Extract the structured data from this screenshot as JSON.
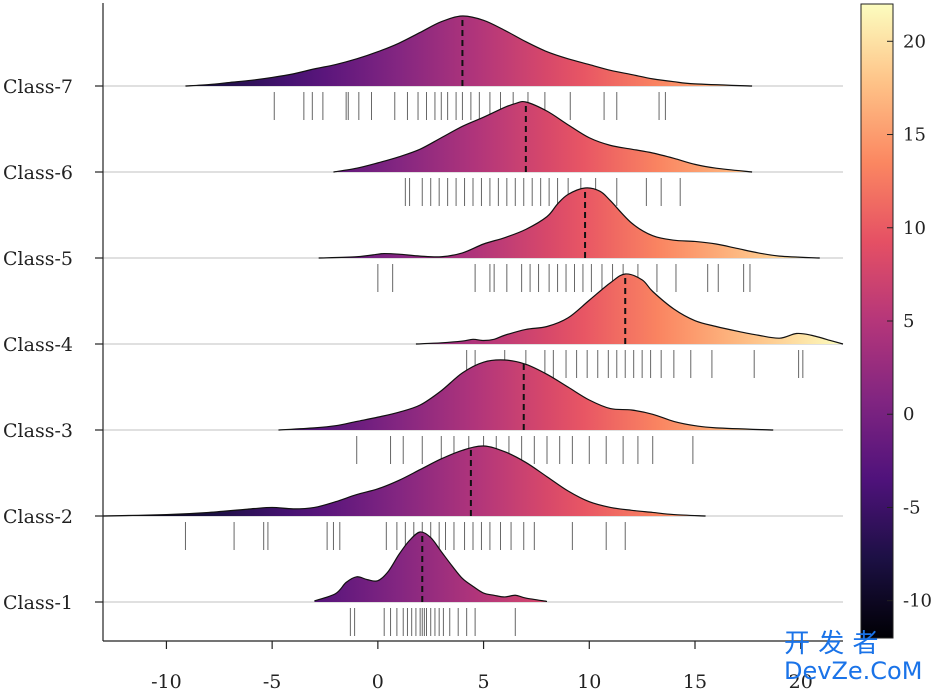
{
  "chart_data": {
    "type": "ridgeline",
    "title": "",
    "xlabel": "",
    "ylabel": "",
    "xlim": [
      -13,
      22
    ],
    "xticks": [
      -10,
      -5,
      0,
      5,
      10,
      15,
      20
    ],
    "xtick_labels": [
      "-10",
      "-5",
      "0",
      "5",
      "10",
      "15",
      "20"
    ],
    "colormap": "magma",
    "colorbar": {
      "range": [
        -12,
        22
      ],
      "ticks": [
        -10,
        -5,
        0,
        5,
        10,
        15,
        20
      ],
      "tick_labels": [
        "-10",
        "-5",
        "0",
        "5",
        "10",
        "15",
        "20"
      ],
      "stops": [
        "#000004",
        "#1c1044",
        "#4f127b",
        "#812581",
        "#b5367a",
        "#e55064",
        "#fb8761",
        "#fec287",
        "#fcfdbf"
      ]
    },
    "grid": "horizontal baselines only",
    "series": [
      {
        "name": "Class-1",
        "median": 2.1,
        "density_x": [
          -3,
          -2,
          -1.5,
          -1,
          -0.5,
          0,
          0.5,
          1,
          1.5,
          2,
          2.5,
          3,
          3.5,
          4,
          4.5,
          5,
          5.5,
          6,
          6.5,
          7,
          8
        ],
        "density_y": [
          0.02,
          0.15,
          0.35,
          0.45,
          0.4,
          0.38,
          0.55,
          0.85,
          1.1,
          1.25,
          1.15,
          0.9,
          0.65,
          0.42,
          0.28,
          0.16,
          0.12,
          0.09,
          0.12,
          0.07,
          0.01
        ],
        "samples": [
          -1.3,
          -1.1,
          0.3,
          0.6,
          0.9,
          1.2,
          1.4,
          1.6,
          1.8,
          2.0,
          2.1,
          2.2,
          2.3,
          2.5,
          2.7,
          2.9,
          3.1,
          3.4,
          3.8,
          4.2,
          4.6,
          6.5
        ]
      },
      {
        "name": "Class-2",
        "median": 4.4,
        "density_x": [
          -13,
          -10,
          -8,
          -6,
          -5,
          -4,
          -3,
          -2,
          -1,
          0,
          1,
          2,
          3,
          4,
          5,
          6,
          7,
          8,
          9,
          10,
          11,
          12,
          13,
          14,
          15.5
        ],
        "density_y": [
          0.0,
          0.02,
          0.05,
          0.1,
          0.12,
          0.1,
          0.12,
          0.2,
          0.3,
          0.38,
          0.5,
          0.65,
          0.8,
          0.92,
          0.98,
          0.9,
          0.75,
          0.55,
          0.35,
          0.2,
          0.12,
          0.08,
          0.05,
          0.02,
          0.0
        ],
        "samples": [
          -9.1,
          -6.8,
          -5.4,
          -5.2,
          -2.4,
          -2.1,
          -1.8,
          0.4,
          0.9,
          1.3,
          1.7,
          2.1,
          2.5,
          2.9,
          3.2,
          3.6,
          4.1,
          4.5,
          4.9,
          5.3,
          5.8,
          6.3,
          6.9,
          7.4,
          9.2,
          10.8,
          11.7
        ]
      },
      {
        "name": "Class-3",
        "median": 6.9,
        "density_x": [
          -4.7,
          -3,
          -2,
          -1,
          0,
          1,
          2,
          3,
          4,
          5,
          6,
          7,
          8,
          9,
          10,
          11,
          12,
          13,
          14,
          15,
          16,
          18.7
        ],
        "density_y": [
          0.0,
          0.03,
          0.06,
          0.12,
          0.18,
          0.25,
          0.35,
          0.55,
          0.8,
          0.95,
          0.98,
          0.92,
          0.78,
          0.6,
          0.42,
          0.3,
          0.28,
          0.22,
          0.12,
          0.06,
          0.03,
          0.0
        ],
        "samples": [
          -1.0,
          0.6,
          1.2,
          2.1,
          3.0,
          3.6,
          4.3,
          5.0,
          5.6,
          6.2,
          6.8,
          7.4,
          8.0,
          8.6,
          9.2,
          10.0,
          10.8,
          11.6,
          12.3,
          13.0,
          14.9
        ]
      },
      {
        "name": "Class-4",
        "median": 11.7,
        "density_x": [
          1.8,
          3,
          4,
          4.5,
          5,
          5.5,
          6,
          7,
          8,
          9,
          10,
          11,
          11.7,
          12.5,
          13,
          14,
          15,
          16,
          17,
          18,
          19,
          19.8,
          20.5,
          21.5,
          22
        ],
        "density_y": [
          0.0,
          0.02,
          0.05,
          0.08,
          0.06,
          0.08,
          0.15,
          0.25,
          0.3,
          0.45,
          0.75,
          1.05,
          1.2,
          1.1,
          0.9,
          0.6,
          0.4,
          0.3,
          0.22,
          0.15,
          0.1,
          0.18,
          0.15,
          0.05,
          0.0
        ],
        "samples": [
          4.2,
          4.6,
          6.0,
          7.0,
          7.9,
          8.3,
          8.9,
          9.4,
          9.9,
          10.4,
          10.9,
          11.3,
          11.7,
          12.1,
          12.5,
          12.9,
          13.4,
          14.0,
          14.8,
          15.8,
          17.8,
          19.9,
          20.1
        ]
      },
      {
        "name": "Class-5",
        "median": 9.8,
        "density_x": [
          -2.8,
          -1,
          0,
          0.3,
          1,
          2,
          3,
          4,
          5,
          6,
          7,
          8,
          8.5,
          9,
          9.8,
          10.5,
          11,
          12,
          13,
          14,
          15,
          16,
          17,
          18,
          19,
          20.9
        ],
        "density_y": [
          0.0,
          0.02,
          0.06,
          0.07,
          0.06,
          0.03,
          0.02,
          0.08,
          0.22,
          0.32,
          0.45,
          0.65,
          0.85,
          1.0,
          1.1,
          1.05,
          0.9,
          0.55,
          0.35,
          0.28,
          0.26,
          0.22,
          0.15,
          0.08,
          0.03,
          0.0
        ],
        "samples": [
          0.0,
          0.7,
          4.6,
          5.3,
          5.5,
          6.1,
          6.8,
          7.2,
          7.6,
          8.1,
          8.5,
          8.9,
          9.3,
          9.7,
          10.1,
          10.6,
          11.1,
          11.6,
          12.3,
          13.2,
          14.1,
          15.6,
          16.1,
          17.3,
          17.6
        ]
      },
      {
        "name": "Class-6",
        "median": 7.0,
        "density_x": [
          -2.1,
          -1,
          0,
          1,
          2,
          3,
          4,
          5,
          6,
          6.5,
          7,
          8,
          9,
          10,
          11,
          12,
          13,
          14,
          15,
          16,
          17.7
        ],
        "density_y": [
          0.0,
          0.05,
          0.12,
          0.2,
          0.3,
          0.45,
          0.6,
          0.72,
          0.85,
          0.9,
          0.92,
          0.8,
          0.62,
          0.45,
          0.35,
          0.3,
          0.25,
          0.18,
          0.1,
          0.05,
          0.0
        ],
        "samples": [
          1.3,
          1.5,
          2.1,
          2.5,
          2.9,
          3.3,
          3.7,
          4.1,
          4.5,
          4.9,
          5.3,
          5.7,
          6.1,
          6.5,
          6.9,
          7.3,
          7.7,
          8.1,
          8.5,
          9.0,
          9.6,
          10.3,
          11.3,
          12.7,
          13.4,
          14.3
        ]
      },
      {
        "name": "Class-7",
        "median": 4.0,
        "density_x": [
          -9.1,
          -8,
          -7,
          -6,
          -5,
          -4,
          -3,
          -2,
          -1,
          0,
          1,
          2,
          3,
          4,
          5,
          6,
          7,
          8,
          9,
          10,
          11,
          12,
          13,
          14,
          15,
          17.7
        ],
        "density_y": [
          0.0,
          0.02,
          0.05,
          0.08,
          0.12,
          0.17,
          0.24,
          0.3,
          0.38,
          0.48,
          0.6,
          0.75,
          0.9,
          0.98,
          0.92,
          0.78,
          0.62,
          0.48,
          0.38,
          0.3,
          0.22,
          0.16,
          0.1,
          0.06,
          0.03,
          0.0
        ],
        "samples": [
          -4.9,
          -3.5,
          -3.1,
          -2.6,
          -1.5,
          -1.4,
          -0.9,
          -0.3,
          0.8,
          1.4,
          1.9,
          2.3,
          2.7,
          3.0,
          3.3,
          3.7,
          4.0,
          4.4,
          4.8,
          5.3,
          5.8,
          6.4,
          7.1,
          7.9,
          9.1,
          10.7,
          11.3,
          13.3,
          13.6
        ]
      }
    ]
  },
  "watermark": {
    "line1": "开 发 者",
    "line2": "DevZe.CoM"
  }
}
